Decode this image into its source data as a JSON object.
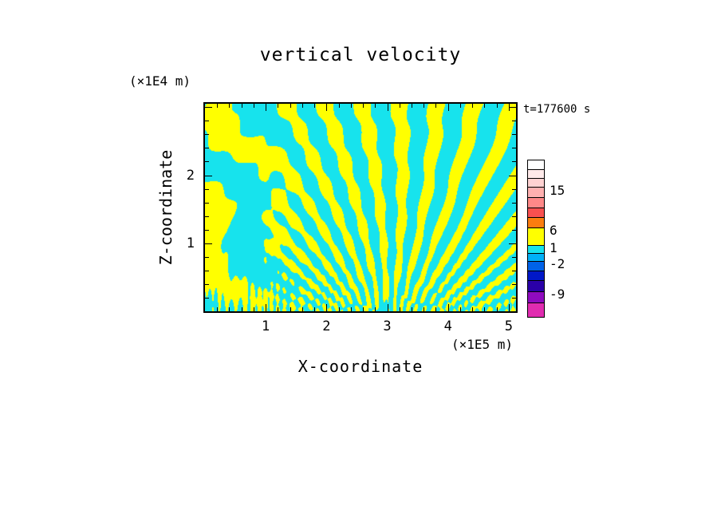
{
  "figure": {
    "title": "vertical velocity",
    "timestamp": "t=177600 s",
    "z_axis_label": "Z-coordinate",
    "x_axis_label": "X-coordinate",
    "z_unit_label": "(×1E4 m)",
    "x_unit_label": "(×1E5 m)"
  },
  "chart_data": {
    "type": "heatmap",
    "title": "vertical velocity",
    "xlabel": "X-coordinate",
    "ylabel": "Z-coordinate",
    "x_units": "×1E5 m",
    "y_units": "×1E4 m",
    "time_annotation": "t=177600 s",
    "xlim": [
      0,
      5.12
    ],
    "ylim": [
      0,
      3.05
    ],
    "x_ticks": [
      1,
      2,
      3,
      4,
      5
    ],
    "y_ticks": [
      1,
      2
    ],
    "x_minor_step": 0.2,
    "y_minor_step": 0.2,
    "grid": false,
    "legend_position": "right-colorbar",
    "field": {
      "description": "Two-tone vertical-velocity field: negative/weak values (about -2 to 1) rendered cyan, positive values (about 1 to 6) rendered yellow; fine wave beams fan upward from a source near x=3×1E5 m at the bottom boundary, with broader tilted bands on the left side and fine striations along the bottom edge.",
      "positive_color": "#ffff00",
      "negative_color": "#17e3ed",
      "gen": {
        "cx": 0.58,
        "cy": 1.22,
        "aspect": 1.0,
        "spokes": 64,
        "radial": 4.5,
        "kx1": 22,
        "kz1": 8,
        "kx2": 6,
        "kz2": 9.5,
        "warp": 1.5,
        "wu0": 0.13,
        "wu1": 0.22,
        "noise": 0.32,
        "nkx": 53,
        "nkz": 31,
        "bamp": 1.25,
        "bexp": 9,
        "bfreq": 270,
        "thresh": 0.15
      }
    },
    "colorbar": {
      "labeled_levels": [
        15,
        6,
        1,
        -2,
        -9
      ],
      "labels": [
        {
          "text": "15",
          "offset": 38
        },
        {
          "text": "6",
          "offset": 88
        },
        {
          "text": "1",
          "offset": 110
        },
        {
          "text": "-2",
          "offset": 130
        },
        {
          "text": "-9",
          "offset": 168
        }
      ],
      "segments": [
        {
          "color": "#ffffff",
          "h": 12
        },
        {
          "color": "#ffeaea",
          "h": 11
        },
        {
          "color": "#ffd2d2",
          "h": 11
        },
        {
          "color": "#ffb0b0",
          "h": 13
        },
        {
          "color": "#fe8888",
          "h": 13
        },
        {
          "color": "#f85050",
          "h": 12
        },
        {
          "color": "#fb7d0f",
          "h": 13
        },
        {
          "color": "#ffff00",
          "h": 22
        },
        {
          "color": "#17e3ed",
          "h": 10
        },
        {
          "color": "#00b0f8",
          "h": 10
        },
        {
          "color": "#0062e8",
          "h": 12
        },
        {
          "color": "#0018c8",
          "h": 12
        },
        {
          "color": "#2a00a8",
          "h": 14
        },
        {
          "color": "#8f0bbf",
          "h": 14
        },
        {
          "color": "#e02cb0",
          "h": 17
        }
      ]
    }
  }
}
